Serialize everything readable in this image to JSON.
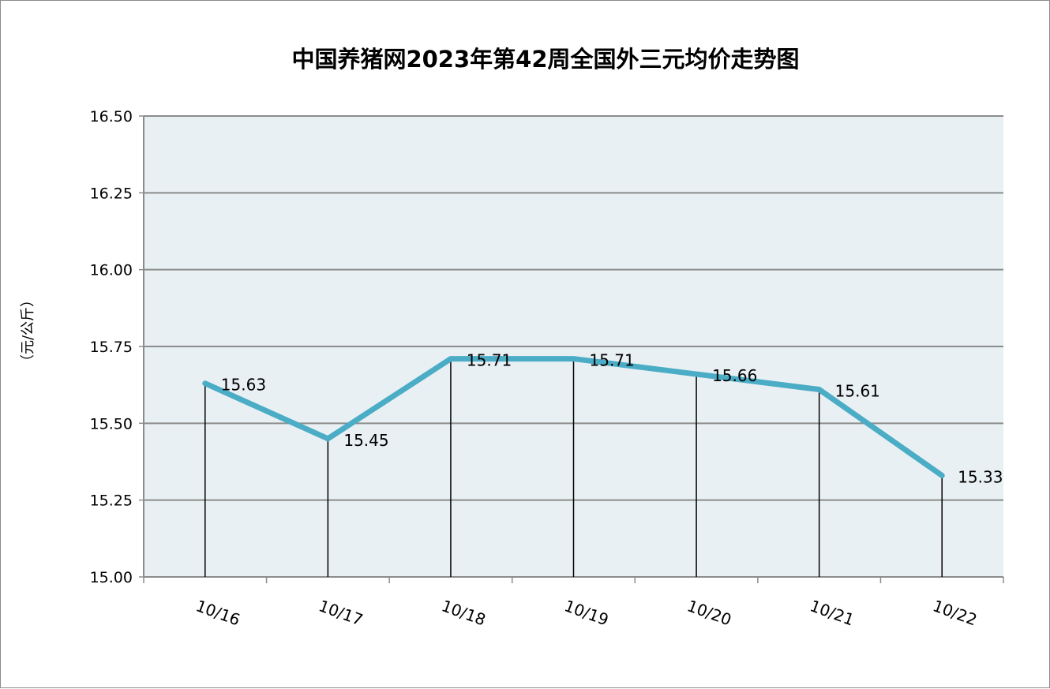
{
  "chart_data": {
    "type": "line",
    "title": "中国养猪网2023年第42周全国外三元均价走势图",
    "xlabel": "",
    "ylabel": "（元/公斤）",
    "categories": [
      "10/16",
      "10/17",
      "10/18",
      "10/19",
      "10/20",
      "10/21",
      "10/22"
    ],
    "series": [
      {
        "values": [
          15.63,
          15.45,
          15.71,
          15.71,
          15.66,
          15.61,
          15.33
        ]
      }
    ],
    "data_labels": [
      "15.63",
      "15.45",
      "15.71",
      "15.71",
      "15.66",
      "15.61",
      "15.33"
    ],
    "ylim": [
      15.0,
      16.5
    ],
    "yticks": [
      "15.00",
      "15.25",
      "15.50",
      "15.75",
      "16.00",
      "16.25",
      "16.50"
    ],
    "drop_lines": true,
    "grid": true,
    "legend": "none",
    "colors": {
      "line": "#4bacc6",
      "plot_background": "#e9f0f3",
      "gridline": "#8c8c8c",
      "drop_line": "#000000"
    }
  }
}
